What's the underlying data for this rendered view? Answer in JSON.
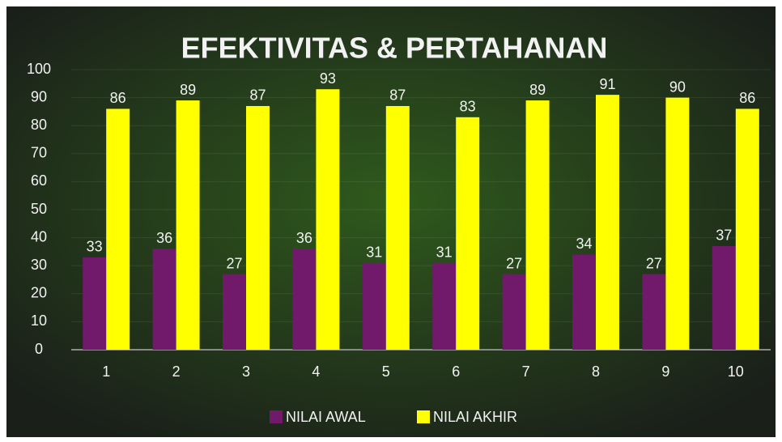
{
  "chart_data": {
    "type": "bar",
    "title": "EFEKTIVITAS & PERTAHANAN",
    "categories": [
      "1",
      "2",
      "3",
      "4",
      "5",
      "6",
      "7",
      "8",
      "9",
      "10"
    ],
    "series": [
      {
        "name": "NILAI AWAL",
        "color": "#71196a",
        "values": [
          33,
          36,
          27,
          36,
          31,
          31,
          27,
          34,
          27,
          37
        ]
      },
      {
        "name": "NILAI AKHIR",
        "color": "#ffff00",
        "values": [
          86,
          89,
          87,
          93,
          87,
          83,
          89,
          91,
          90,
          86
        ]
      }
    ],
    "ylim": [
      0,
      100
    ],
    "yticks": [
      0,
      10,
      20,
      30,
      40,
      50,
      60,
      70,
      80,
      90,
      100
    ],
    "grid": true,
    "legend": "bottom"
  }
}
